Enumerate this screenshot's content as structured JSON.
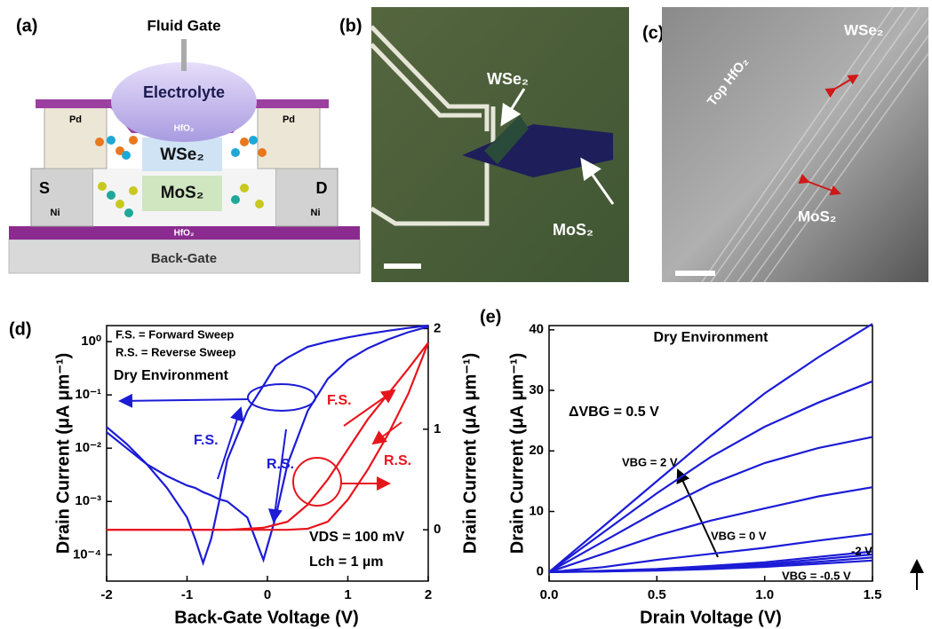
{
  "panels": {
    "a": {
      "label": "(a)",
      "fluid_gate": "Fluid Gate",
      "electrolyte": "Electrolyte",
      "pd_left": "Pd",
      "pd_right": "Pd",
      "hfo2_top": "HfO₂",
      "wse2": "WSe₂",
      "mos2": "MoS₂",
      "source": "S",
      "drain": "D",
      "ni_left": "Ni",
      "ni_right": "Ni",
      "hfo2_bottom": "HfO₂",
      "back_gate": "Back-Gate"
    },
    "b": {
      "label": "(b)",
      "wse2": "WSe₂",
      "mos2": "MoS₂"
    },
    "c": {
      "label": "(c)",
      "top_hfo2": "Top HfO₂",
      "wse2": "WSe₂",
      "mos2": "MoS₂"
    }
  },
  "chart_data": [
    {
      "label": "(d)",
      "type": "line",
      "xlabel": "Back-Gate Voltage (V)",
      "ylabel": "Drain Current (μA μm⁻¹)",
      "y2label": "Drain Current (μA μm⁻¹)",
      "yscale": "log",
      "x": [
        -2,
        -1.75,
        -1.5,
        -1.25,
        -1,
        -0.9,
        -0.8,
        -0.7,
        -0.6,
        -0.5,
        -0.25,
        -0.05,
        0.1,
        0.25,
        0.5,
        0.75,
        1,
        1.25,
        1.5,
        1.75,
        2
      ],
      "xlim": [
        -2,
        2
      ],
      "xticks": [
        -2,
        -1,
        0,
        1,
        2
      ],
      "ylim": [
        3.2e-05,
        2
      ],
      "yticks": [
        {
          "value": 0.0001,
          "label": "10⁻⁴"
        },
        {
          "value": 0.001,
          "label": "10⁻³"
        },
        {
          "value": 0.01,
          "label": "10⁻²"
        },
        {
          "value": 0.1,
          "label": "10⁻¹"
        },
        {
          "value": 1,
          "label": "10⁰"
        }
      ],
      "y2lim": [
        -0.51,
        2.03
      ],
      "y2ticks": [
        0,
        1,
        2
      ],
      "series": [
        {
          "name": "F.S.",
          "color": "#1c1cd6",
          "values": [
            0.025,
            0.012,
            0.005,
            0.0018,
            0.0005,
            0.0002,
            7e-05,
            0.0002,
            0.001,
            0.006,
            0.05,
            0.15,
            0.35,
            0.5,
            0.8,
            1.0,
            1.2,
            1.4,
            1.6,
            1.8,
            2
          ]
        },
        {
          "name": "R.S.",
          "color": "#1c1cd6",
          "values": [
            0.02,
            0.01,
            0.005,
            0.003,
            0.002,
            0.0018,
            0.0015,
            0.0013,
            0.0011,
            0.001,
            0.0005,
            8e-05,
            0.0005,
            0.005,
            0.05,
            0.2,
            0.45,
            0.75,
            1.1,
            1.5,
            1.9
          ]
        },
        {
          "name": "F.S.",
          "color": "#e8141c",
          "axis": "y2",
          "values": [
            0,
            0,
            0,
            0,
            0,
            0,
            0,
            0,
            0,
            0,
            0.01,
            0.02,
            0.05,
            0.08,
            0.25,
            0.5,
            0.8,
            1.1,
            1.35,
            1.6,
            1.86
          ]
        },
        {
          "name": "R.S.",
          "color": "#e8141c",
          "axis": "y2",
          "values": [
            0,
            0,
            0,
            0,
            0,
            0,
            0,
            0,
            0,
            0,
            0,
            0,
            0,
            0,
            0.01,
            0.08,
            0.3,
            0.6,
            0.95,
            1.35,
            1.86
          ]
        }
      ],
      "annotations": [
        "F.S. = Forward Sweep",
        "R.S. = Reverse Sweep",
        "Dry Environment",
        "VDS = 100 mV",
        "Lch = 1 µm"
      ]
    },
    {
      "label": "(e)",
      "type": "line",
      "xlabel": "Drain Voltage (V)",
      "ylabel": "Drain Current (μA μm⁻¹)",
      "x": [
        0,
        0.25,
        0.5,
        0.75,
        1,
        1.25,
        1.5
      ],
      "xlim": [
        0,
        1.5
      ],
      "xticks": [
        {
          "value": 0,
          "label": "0.0"
        },
        0.5,
        {
          "value": 1,
          "label": "1.0"
        },
        1.5
      ],
      "ylim": [
        -1.5,
        40.7
      ],
      "yticks": [
        0,
        10,
        20,
        30,
        40
      ],
      "series": [
        {
          "color": "#1c1cd6",
          "values": [
            0,
            7.5,
            15,
            22.5,
            29.5,
            35.5,
            41
          ]
        },
        {
          "color": "#1c1cd6",
          "values": [
            0,
            6.5,
            13,
            19,
            24,
            28,
            31.5
          ]
        },
        {
          "color": "#1c1cd6",
          "values": [
            0,
            5,
            10,
            14.5,
            18,
            20.5,
            22.3
          ]
        },
        {
          "color": "#1c1cd6",
          "values": [
            0,
            3,
            6,
            8.5,
            10.5,
            12.5,
            14
          ]
        },
        {
          "color": "#1c1cd6",
          "values": [
            0,
            0.8,
            2,
            3,
            4,
            5.2,
            6.3
          ]
        },
        {
          "color": "#1c1cd6",
          "values": [
            0,
            0.2,
            0.5,
            1,
            1.6,
            2.5,
            3.4
          ]
        },
        {
          "color": "#1c1cd6",
          "values": [
            0,
            0.15,
            0.4,
            0.8,
            1.3,
            2.1,
            2.9
          ]
        },
        {
          "color": "#1c1cd6",
          "values": [
            0,
            0.1,
            0.3,
            0.6,
            1.1,
            1.7,
            2.4
          ]
        },
        {
          "color": "#1c1cd6",
          "values": [
            0,
            0.1,
            0.25,
            0.5,
            0.85,
            1.35,
            1.9
          ]
        }
      ],
      "annotations": [
        "Dry Environment",
        "ΔVBG = 0.5 V",
        "VBG = 2 V",
        "VBG = 0 V",
        "-2 V",
        "VBG = -0.5 V"
      ]
    }
  ]
}
